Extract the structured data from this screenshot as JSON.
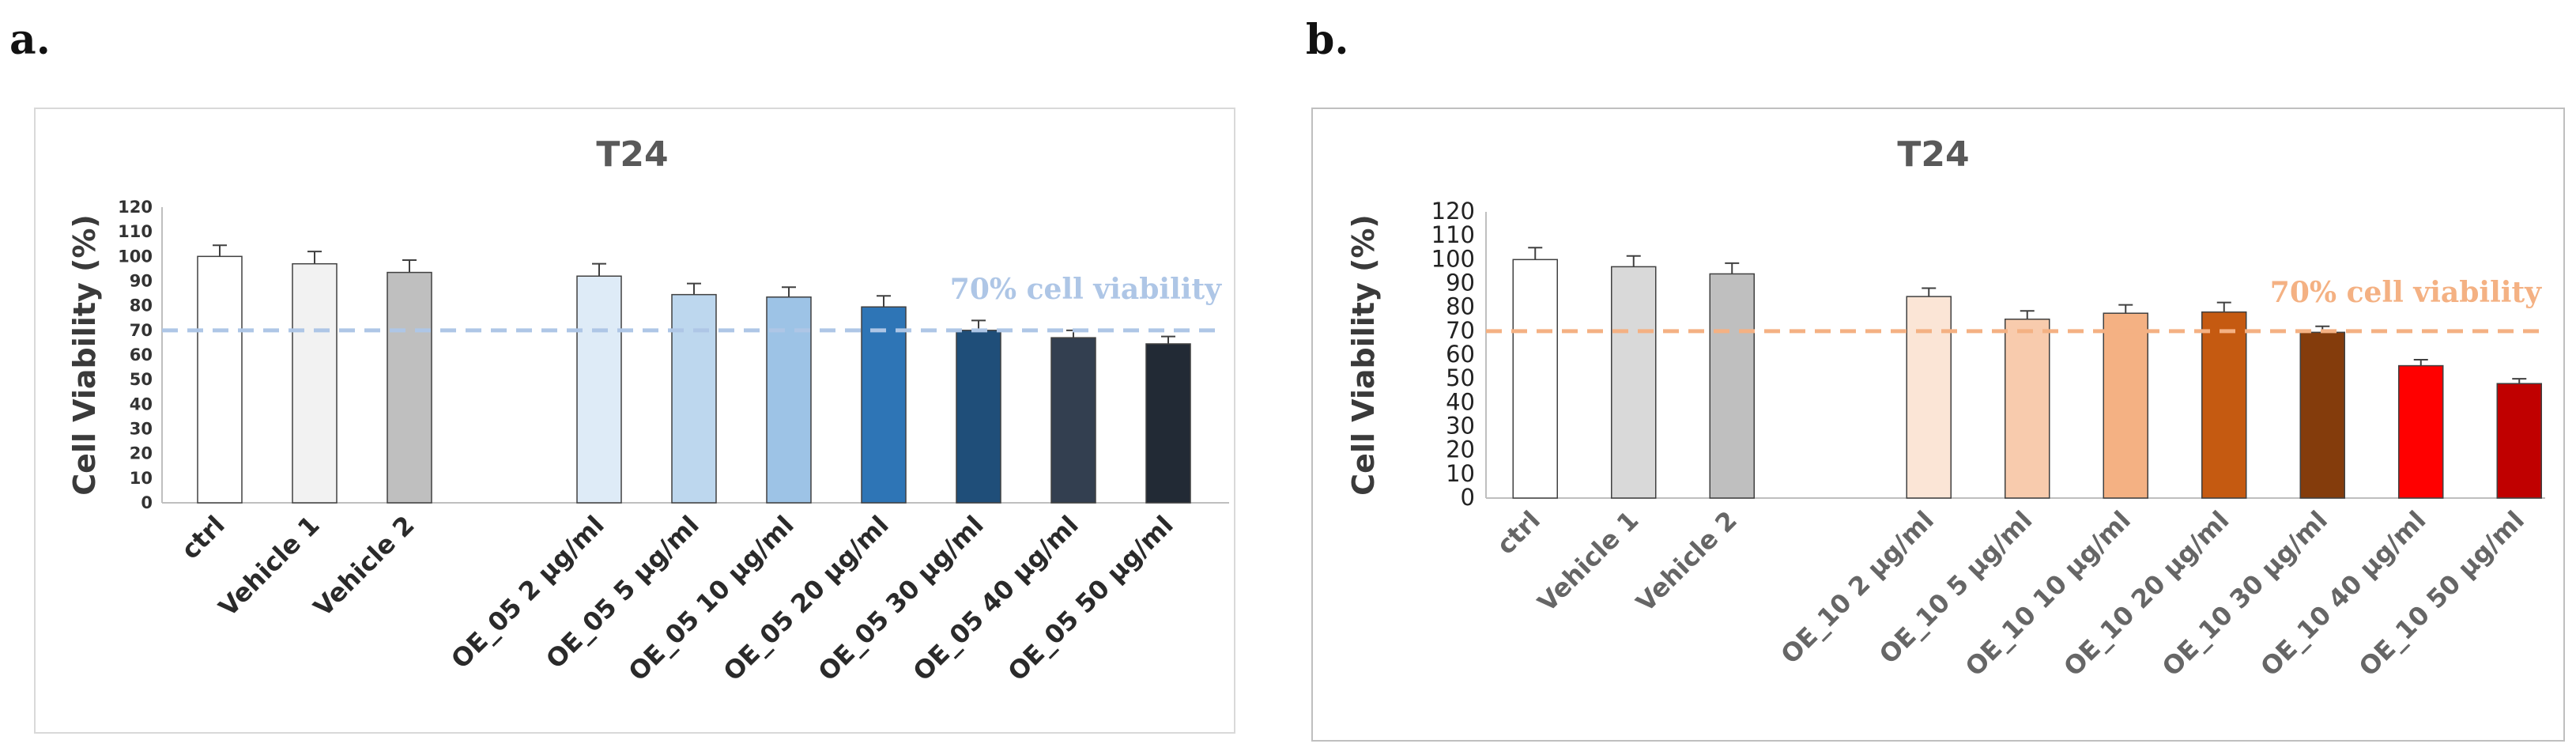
{
  "panels": [
    {
      "label": "a."
    },
    {
      "label": "b."
    }
  ],
  "chart_data": [
    {
      "type": "bar",
      "title": "T24",
      "xlabel": "",
      "ylabel": "Cell Viability (%)",
      "ylim": [
        0,
        120
      ],
      "yticks": [
        "0",
        "10",
        "20",
        "30",
        "40",
        "50",
        "60",
        "70",
        "80",
        "90",
        "100",
        "110",
        "120"
      ],
      "categories": [
        "ctrl",
        "Vehicle 1",
        "Vehicle 2",
        "OE_05 2 µg/ml",
        "OE_05 5 µg/ml",
        "OE_05 10 µg/ml",
        "OE_05 20 µg/ml",
        "OE_05 30 µg/ml",
        "OE_05 40 µg/ml",
        "OE_05 50 µg/ml"
      ],
      "values": [
        100,
        97,
        93.5,
        92,
        84.5,
        83.5,
        79.5,
        70,
        67,
        64.5
      ],
      "errors": [
        4.5,
        5,
        5,
        5,
        4.5,
        4,
        4.5,
        4,
        3,
        3
      ],
      "colors": [
        "#ffffff",
        "#f2f2f2",
        "#bfbfbf",
        "#deebf7",
        "#bdd7ee",
        "#9dc3e6",
        "#2e75b6",
        "#1f4e79",
        "#333f50",
        "#222a35"
      ],
      "reference_line": {
        "value": 70,
        "label": "70% cell viability",
        "color": "#aec6e6"
      }
    },
    {
      "type": "bar",
      "title": "T24",
      "xlabel": "",
      "ylabel": "Cell Viability (%)",
      "ylim": [
        0,
        120
      ],
      "yticks": [
        "0",
        "10",
        "20",
        "30",
        "40",
        "50",
        "60",
        "70",
        "80",
        "90",
        "100",
        "110",
        "120"
      ],
      "categories": [
        "ctrl",
        "Vehicle 1",
        "Vehicle 2",
        "OE_10 2 µg/ml",
        "OE_10 5 µg/ml",
        "OE_10 10 µg/ml",
        "OE_10 20 µg/ml",
        "OE_10 30 µg/ml",
        "OE_10 40 µg/ml",
        "OE_10 50 µg/ml"
      ],
      "values": [
        100,
        97,
        94,
        84.5,
        75,
        77.5,
        78,
        69.5,
        55.5,
        48
      ],
      "errors": [
        5,
        4.5,
        4.5,
        3.5,
        3.5,
        3.5,
        4,
        2.5,
        2.5,
        2
      ],
      "colors": [
        "#ffffff",
        "#d9d9d9",
        "#bfbfbf",
        "#fbe5d6",
        "#f8cbad",
        "#f4b183",
        "#c55a11",
        "#843c0c",
        "#ff0000",
        "#c00000"
      ],
      "reference_line": {
        "value": 70,
        "label": "70% cell viability",
        "color": "#f4b183"
      }
    }
  ]
}
